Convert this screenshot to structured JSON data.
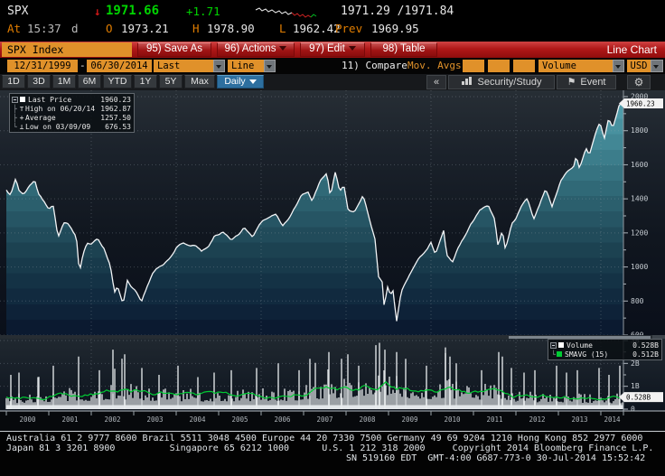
{
  "header": {
    "ticker": "SPX",
    "down_arrow": "↓",
    "last_price": "1971.66",
    "change": "+1.71",
    "bid_ask": "1971.29 /1971.84",
    "at_label": "At",
    "time": "15:37",
    "session_flag": "d",
    "open_label": "O",
    "open": "1973.21",
    "high_label": "H",
    "high": "1978.90",
    "low_label": "L",
    "low": "1962.42",
    "prev_label": "Prev",
    "prev_close": "1969.95"
  },
  "toolbar": {
    "security_field": "SPX Index",
    "save_as": "95) Save As",
    "actions": "96) Actions",
    "edit": "97) Edit",
    "table": "98) Table",
    "chart_type_title": "Line Chart"
  },
  "settings": {
    "date_from": "12/31/1999",
    "range_separator": "-",
    "date_to": "06/30/2014",
    "price_field": "Last Price",
    "style_field": "Line",
    "compare_label": "11) Compare",
    "mov_avgs": "Mov. Avgs",
    "volume_field": "Volume",
    "currency": "USD"
  },
  "period_bar": {
    "tabs": [
      "1D",
      "3D",
      "1M",
      "6M",
      "YTD",
      "1Y",
      "5Y",
      "Max"
    ],
    "frequency": "Daily",
    "collapse": "«",
    "security_study": "Security/Study",
    "event": "Event",
    "event_icon": "⚑",
    "gear_icon": "⚙"
  },
  "price_legend": {
    "rows": [
      {
        "marker": "",
        "label": "Last Price",
        "value": "1960.23"
      },
      {
        "marker": "⊤",
        "label": "High on 06/20/14",
        "value": "1962.87"
      },
      {
        "marker": "+",
        "label": "Average",
        "value": "1257.50"
      },
      {
        "marker": "⊥",
        "label": "Low on 03/09/09",
        "value": "676.53"
      }
    ],
    "tree_mid": "├",
    "tree_end": "└"
  },
  "volume_legend": {
    "rows": [
      {
        "swatch": "#ffffff",
        "label": "Volume",
        "value": "0.528B"
      },
      {
        "swatch": "#00cc33",
        "label": "SMAVG (15)",
        "value": "0.512B"
      }
    ],
    "tree_end": "└"
  },
  "chart_data": {
    "type": "line",
    "title": "SPX Index Last Price, Daily, 12/31/1999 - 06/30/2014",
    "x_ticks": [
      "2000",
      "2001",
      "2002",
      "2003",
      "2004",
      "2005",
      "2006",
      "2007",
      "2008",
      "2009",
      "2010",
      "2011",
      "2012",
      "2013",
      "2014"
    ],
    "y_axis": {
      "ticks": [
        600,
        800,
        1000,
        1200,
        1400,
        1600,
        1800,
        2000
      ],
      "minor_step": 100,
      "range": [
        600,
        2000
      ]
    },
    "last_price_flag": "1960.23",
    "stats": {
      "last": 1960.23,
      "high": 1962.87,
      "high_date": "06/20/14",
      "average": 1257.5,
      "low": 676.53,
      "low_date": "03/09/09"
    },
    "series": [
      {
        "name": "Last Price",
        "color": "#f2f4f6",
        "points": [
          [
            2000.0,
            1455
          ],
          [
            2000.1,
            1420
          ],
          [
            2000.22,
            1520
          ],
          [
            2000.3,
            1450
          ],
          [
            2000.4,
            1425
          ],
          [
            2000.55,
            1478
          ],
          [
            2000.67,
            1512
          ],
          [
            2000.75,
            1435
          ],
          [
            2000.9,
            1378
          ],
          [
            2001.0,
            1342
          ],
          [
            2001.1,
            1368
          ],
          [
            2001.22,
            1172
          ],
          [
            2001.35,
            1258
          ],
          [
            2001.45,
            1252
          ],
          [
            2001.55,
            1214
          ],
          [
            2001.65,
            1180
          ],
          [
            2001.72,
            968
          ],
          [
            2001.8,
            1072
          ],
          [
            2001.9,
            1142
          ],
          [
            2002.0,
            1132
          ],
          [
            2002.15,
            1168
          ],
          [
            2002.3,
            1108
          ],
          [
            2002.45,
            1008
          ],
          [
            2002.55,
            852
          ],
          [
            2002.62,
            885
          ],
          [
            2002.7,
            818
          ],
          [
            2002.75,
            778
          ],
          [
            2002.85,
            922
          ],
          [
            2002.95,
            876
          ],
          [
            2003.05,
            856
          ],
          [
            2003.18,
            790
          ],
          [
            2003.3,
            876
          ],
          [
            2003.45,
            964
          ],
          [
            2003.55,
            990
          ],
          [
            2003.7,
            1012
          ],
          [
            2003.85,
            1052
          ],
          [
            2004.0,
            1112
          ],
          [
            2004.15,
            1144
          ],
          [
            2004.3,
            1122
          ],
          [
            2004.45,
            1124
          ],
          [
            2004.6,
            1092
          ],
          [
            2004.75,
            1116
          ],
          [
            2004.9,
            1182
          ],
          [
            2005.0,
            1186
          ],
          [
            2005.1,
            1202
          ],
          [
            2005.3,
            1158
          ],
          [
            2005.5,
            1196
          ],
          [
            2005.6,
            1234
          ],
          [
            2005.8,
            1178
          ],
          [
            2005.95,
            1252
          ],
          [
            2006.1,
            1282
          ],
          [
            2006.35,
            1312
          ],
          [
            2006.5,
            1238
          ],
          [
            2006.65,
            1282
          ],
          [
            2006.8,
            1352
          ],
          [
            2006.95,
            1420
          ],
          [
            2007.1,
            1440
          ],
          [
            2007.2,
            1388
          ],
          [
            2007.4,
            1508
          ],
          [
            2007.55,
            1552
          ],
          [
            2007.63,
            1412
          ],
          [
            2007.75,
            1558
          ],
          [
            2007.85,
            1442
          ],
          [
            2007.95,
            1476
          ],
          [
            2008.05,
            1332
          ],
          [
            2008.2,
            1322
          ],
          [
            2008.4,
            1422
          ],
          [
            2008.55,
            1282
          ],
          [
            2008.68,
            1164
          ],
          [
            2008.78,
            902
          ],
          [
            2008.84,
            946
          ],
          [
            2008.9,
            754
          ],
          [
            2008.97,
            888
          ],
          [
            2009.05,
            832
          ],
          [
            2009.1,
            872
          ],
          [
            2009.19,
            677
          ],
          [
            2009.3,
            856
          ],
          [
            2009.45,
            932
          ],
          [
            2009.6,
            1002
          ],
          [
            2009.75,
            1062
          ],
          [
            2009.9,
            1102
          ],
          [
            2010.0,
            1142
          ],
          [
            2010.1,
            1072
          ],
          [
            2010.3,
            1212
          ],
          [
            2010.37,
            1068
          ],
          [
            2010.5,
            1024
          ],
          [
            2010.65,
            1122
          ],
          [
            2010.8,
            1182
          ],
          [
            2010.95,
            1256
          ],
          [
            2011.05,
            1292
          ],
          [
            2011.15,
            1338
          ],
          [
            2011.35,
            1362
          ],
          [
            2011.5,
            1282
          ],
          [
            2011.58,
            1122
          ],
          [
            2011.68,
            1218
          ],
          [
            2011.75,
            1102
          ],
          [
            2011.9,
            1252
          ],
          [
            2012.0,
            1282
          ],
          [
            2012.15,
            1372
          ],
          [
            2012.27,
            1402
          ],
          [
            2012.42,
            1282
          ],
          [
            2012.55,
            1362
          ],
          [
            2012.7,
            1462
          ],
          [
            2012.85,
            1358
          ],
          [
            2012.95,
            1422
          ],
          [
            2013.05,
            1502
          ],
          [
            2013.2,
            1562
          ],
          [
            2013.35,
            1582
          ],
          [
            2013.42,
            1652
          ],
          [
            2013.5,
            1578
          ],
          [
            2013.65,
            1702
          ],
          [
            2013.73,
            1658
          ],
          [
            2013.9,
            1802
          ],
          [
            2013.98,
            1846
          ],
          [
            2014.08,
            1748
          ],
          [
            2014.18,
            1872
          ],
          [
            2014.28,
            1818
          ],
          [
            2014.38,
            1902
          ],
          [
            2014.44,
            1958
          ],
          [
            2014.47,
            1960.23
          ]
        ]
      }
    ],
    "volume": {
      "axis_ticks": [
        "3B",
        "2B",
        "1B",
        "0"
      ],
      "axis_values": [
        3,
        2,
        1,
        0
      ],
      "flag": "0.528B",
      "bar_color": "#e7ebed",
      "smavg_color": "#00cc33",
      "envelope": [
        [
          2000.0,
          0.52
        ],
        [
          2000.5,
          0.56
        ],
        [
          2001.0,
          0.62
        ],
        [
          2001.7,
          0.72
        ],
        [
          2002.0,
          0.74
        ],
        [
          2002.6,
          0.88
        ],
        [
          2003.0,
          0.82
        ],
        [
          2003.5,
          0.72
        ],
        [
          2004.0,
          0.7
        ],
        [
          2004.5,
          0.65
        ],
        [
          2005.0,
          0.67
        ],
        [
          2005.5,
          0.68
        ],
        [
          2006.0,
          0.72
        ],
        [
          2006.5,
          0.7
        ],
        [
          2007.0,
          0.78
        ],
        [
          2007.6,
          0.95
        ],
        [
          2008.0,
          1.0
        ],
        [
          2008.8,
          1.3
        ],
        [
          2009.2,
          1.15
        ],
        [
          2009.5,
          0.95
        ],
        [
          2010.0,
          0.85
        ],
        [
          2010.4,
          1.0
        ],
        [
          2010.7,
          0.85
        ],
        [
          2011.0,
          0.75
        ],
        [
          2011.6,
          0.95
        ],
        [
          2012.0,
          0.66
        ],
        [
          2012.5,
          0.6
        ],
        [
          2013.0,
          0.58
        ],
        [
          2013.5,
          0.55
        ],
        [
          2014.0,
          0.52
        ],
        [
          2014.5,
          0.512
        ]
      ],
      "spikes": [
        [
          2000.1,
          1.5
        ],
        [
          2000.3,
          1.6
        ],
        [
          2000.75,
          1.4
        ],
        [
          2001.1,
          1.9
        ],
        [
          2001.7,
          2.3
        ],
        [
          2002.2,
          1.7
        ],
        [
          2002.5,
          2.6
        ],
        [
          2002.78,
          2.4
        ],
        [
          2003.2,
          1.8
        ],
        [
          2003.6,
          1.5
        ],
        [
          2004.05,
          1.9
        ],
        [
          2004.5,
          1.4
        ],
        [
          2004.9,
          1.6
        ],
        [
          2005.3,
          1.7
        ],
        [
          2005.9,
          1.8
        ],
        [
          2006.4,
          2.0
        ],
        [
          2006.9,
          1.7
        ],
        [
          2007.15,
          2.2
        ],
        [
          2007.6,
          2.5
        ],
        [
          2007.9,
          2.2
        ],
        [
          2008.05,
          2.4
        ],
        [
          2008.3,
          1.9
        ],
        [
          2008.7,
          2.8
        ],
        [
          2008.78,
          2.9
        ],
        [
          2008.92,
          2.6
        ],
        [
          2009.2,
          2.5
        ],
        [
          2009.4,
          2.2
        ],
        [
          2009.9,
          1.9
        ],
        [
          2010.35,
          2.7
        ],
        [
          2010.45,
          2.3
        ],
        [
          2010.6,
          2.0
        ],
        [
          2011.2,
          1.7
        ],
        [
          2011.6,
          2.5
        ],
        [
          2011.68,
          2.3
        ],
        [
          2011.9,
          1.8
        ],
        [
          2012.2,
          1.6
        ],
        [
          2012.45,
          1.7
        ],
        [
          2012.95,
          1.9
        ],
        [
          2013.2,
          1.6
        ],
        [
          2013.45,
          1.7
        ],
        [
          2013.95,
          1.8
        ],
        [
          2014.2,
          1.5
        ],
        [
          2014.45,
          1.9
        ]
      ]
    }
  },
  "footer": {
    "line1": "Australia 61 2 9777 8600 Brazil 5511 3048 4500 Europe 44 20 7330 7500 Germany 49 69 9204 1210 Hong Kong 852 2977 6000",
    "line2": "Japan 81 3 3201 8900          Singapore 65 6212 1000      U.S. 1 212 318 2000     Copyright 2014 Bloomberg Finance L.P.",
    "line3": "SN 519160 EDT  GMT-4:00 G687-773-0 30-Jul-2014 15:52:42"
  }
}
